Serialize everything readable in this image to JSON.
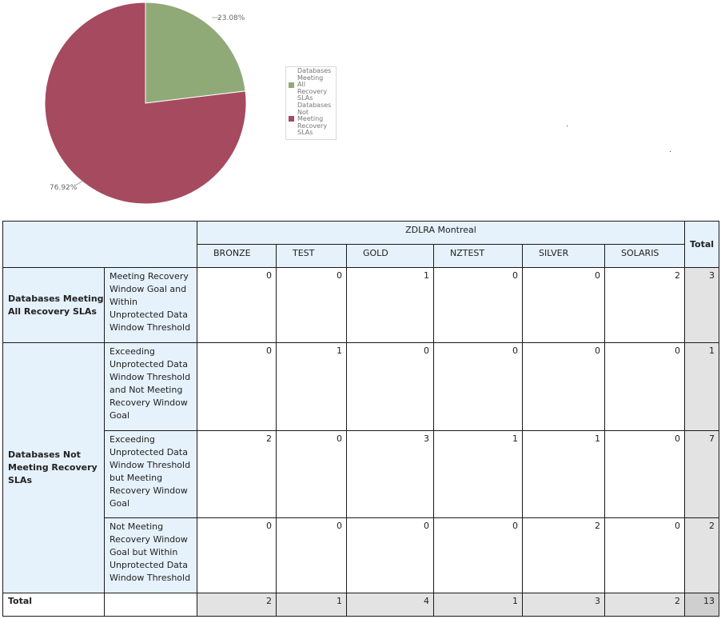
{
  "chart_data": {
    "type": "pie",
    "slices": [
      {
        "name": "Databases Meeting All Recovery SLAs",
        "value": 23.08,
        "label": "23.08%",
        "color": "#8faa77"
      },
      {
        "name": "Databases Not Meeting Recovery SLAs",
        "value": 76.92,
        "label": "76.92%",
        "color": "#a54a5f"
      }
    ],
    "legend": {
      "placement": "right",
      "lines": [
        [
          "Databases",
          "Meeting",
          "All",
          "Recovery",
          "SLAs"
        ],
        [
          "Databases",
          "Not",
          "Meeting",
          "Recovery",
          "SLAs"
        ]
      ]
    }
  },
  "table": {
    "group_header": "ZDLRA Montreal",
    "total_header": "Total",
    "columns": [
      "BRONZE",
      "TEST",
      "GOLD",
      "NZTEST",
      "SILVER",
      "SOLARIS"
    ],
    "groups": [
      {
        "label": "Databases Meeting All Recovery SLAs",
        "rows": [
          {
            "label": "Meeting Recovery Window Goal and Within Unprotected Data Window Threshold",
            "values": [
              0,
              0,
              1,
              0,
              0,
              2
            ],
            "total": 3
          }
        ]
      },
      {
        "label": "Databases Not Meeting Recovery SLAs",
        "rows": [
          {
            "label": "Exceeding Unprotected Data Window Threshold and Not Meeting Recovery Window Goal",
            "values": [
              0,
              1,
              0,
              0,
              0,
              0
            ],
            "total": 1
          },
          {
            "label": "Exceeding Unprotected Data Window Threshold but Meeting Recovery Window Goal",
            "values": [
              2,
              0,
              3,
              1,
              1,
              0
            ],
            "total": 7
          },
          {
            "label": "Not Meeting Recovery Window Goal but Within Unprotected Data Window Threshold",
            "values": [
              0,
              0,
              0,
              0,
              2,
              0
            ],
            "total": 2
          }
        ]
      }
    ],
    "total_row": {
      "label": "Total",
      "values": [
        2,
        1,
        4,
        1,
        3,
        2
      ],
      "total": 13
    }
  }
}
